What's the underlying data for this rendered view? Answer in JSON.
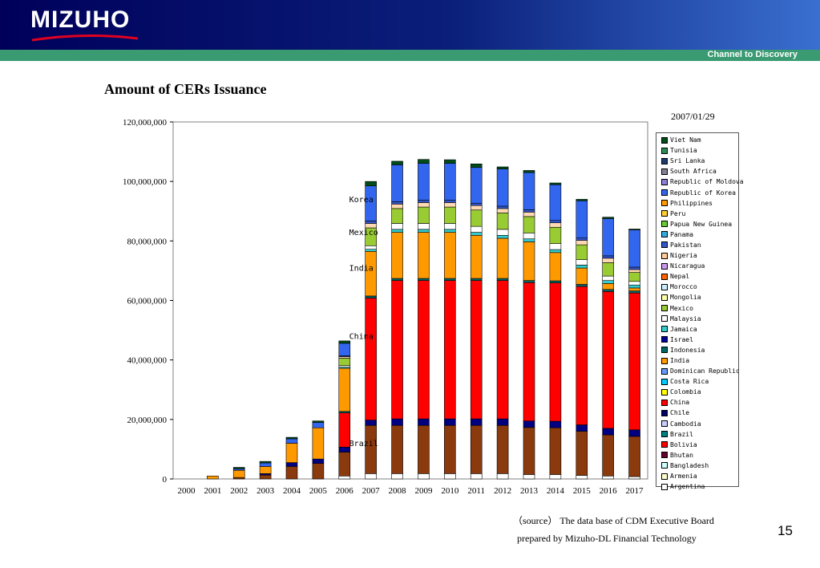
{
  "header": {
    "logo_text": "MIZUHO",
    "tagline": "Channel to Discovery"
  },
  "page": {
    "title": "Amount of CERs Issuance",
    "date": "2007/01/29",
    "source_note": "（source）  The data base of CDM Executive Board",
    "prepared_note": "prepared by Mizuho-DL Financial Technology",
    "page_number": "15"
  },
  "chart_data": {
    "type": "bar",
    "stacked": true,
    "categories": [
      "2000",
      "2001",
      "2002",
      "2003",
      "2004",
      "2005",
      "2006",
      "2007",
      "2008",
      "2009",
      "2010",
      "2011",
      "2012",
      "2013",
      "2014",
      "2015",
      "2016",
      "2017"
    ],
    "ylim": [
      0,
      120000000
    ],
    "yticks": [
      0,
      20000000,
      40000000,
      60000000,
      80000000,
      100000000,
      120000000
    ],
    "ytick_labels": [
      "0",
      "20,000,000",
      "40,000,000",
      "60,000,000",
      "80,000,000",
      "100,000,000",
      "120,000,000"
    ],
    "legend_position": "right",
    "legend": [
      {
        "name": "Viet Nam",
        "color": "#004d1a"
      },
      {
        "name": "Tunisia",
        "color": "#2e8b57"
      },
      {
        "name": "Sri Lanka",
        "color": "#1f3a6e"
      },
      {
        "name": "South Africa",
        "color": "#808090"
      },
      {
        "name": "Republic of Moldova",
        "color": "#8c7fd6"
      },
      {
        "name": "Republic of Korea",
        "color": "#3366ee"
      },
      {
        "name": "Philippines",
        "color": "#ff9900"
      },
      {
        "name": "Peru",
        "color": "#ffcc33"
      },
      {
        "name": "Papua New Guinea",
        "color": "#66cc33"
      },
      {
        "name": "Panama",
        "color": "#33aadd"
      },
      {
        "name": "Pakistan",
        "color": "#3355cc"
      },
      {
        "name": "Nigeria",
        "color": "#ffcc99"
      },
      {
        "name": "Nicaragua",
        "color": "#cc99ee"
      },
      {
        "name": "Nepal",
        "color": "#ff6600"
      },
      {
        "name": "Morocco",
        "color": "#cceeff"
      },
      {
        "name": "Mongolia",
        "color": "#ffffaa"
      },
      {
        "name": "Mexico",
        "color": "#99cc33"
      },
      {
        "name": "Malaysia",
        "color": "#ffffff"
      },
      {
        "name": "Jamaica",
        "color": "#33cccc"
      },
      {
        "name": "Israel",
        "color": "#000099"
      },
      {
        "name": "Indonesia",
        "color": "#006666"
      },
      {
        "name": "India",
        "color": "#ff9900"
      },
      {
        "name": "Dominican Republic",
        "color": "#6699ff"
      },
      {
        "name": "Costa Rica",
        "color": "#00ccff"
      },
      {
        "name": "Colombia",
        "color": "#ffff00"
      },
      {
        "name": "China",
        "color": "#ff0000"
      },
      {
        "name": "Chile",
        "color": "#000066"
      },
      {
        "name": "Cambodia",
        "color": "#ccccff"
      },
      {
        "name": "Brazil",
        "color": "#008080"
      },
      {
        "name": "Bolivia",
        "color": "#ff0000"
      },
      {
        "name": "Bhutan",
        "color": "#660033"
      },
      {
        "name": "Bangladesh",
        "color": "#ccffff"
      },
      {
        "name": "Armenia",
        "color": "#ffffcc"
      },
      {
        "name": "Argentina",
        "color": "#ffffff"
      }
    ],
    "annotations": [
      {
        "text": "Korea",
        "year": "2007",
        "value": 93000000
      },
      {
        "text": "Mexico",
        "year": "2007",
        "value": 82000000
      },
      {
        "text": "India",
        "year": "2007",
        "value": 70000000
      },
      {
        "text": "China",
        "year": "2007",
        "value": 47000000
      },
      {
        "text": "Brazil",
        "year": "2007",
        "value": 11000000
      }
    ],
    "series": [
      {
        "name": "Argentina",
        "color": "#ffffff",
        "values": [
          0,
          0,
          0,
          0,
          0,
          0,
          1000000,
          1800000,
          1800000,
          1800000,
          1800000,
          1800000,
          1800000,
          1500000,
          1500000,
          1200000,
          1000000,
          800000
        ]
      },
      {
        "name": "Brazil",
        "color": "#8b3a0e",
        "values": [
          0,
          0,
          500000,
          1300000,
          4200000,
          5200000,
          8000000,
          16200000,
          16200000,
          16200000,
          16200000,
          16200000,
          16200000,
          15800000,
          15700000,
          14800000,
          13800000,
          13500000
        ]
      },
      {
        "name": "Chile",
        "color": "#000080",
        "values": [
          0,
          0,
          0,
          500000,
          1300000,
          1500000,
          1700000,
          1800000,
          2200000,
          2200000,
          2200000,
          2200000,
          2200000,
          2200000,
          2200000,
          2200000,
          2200000,
          2200000
        ]
      },
      {
        "name": "China",
        "color": "#ff0000",
        "values": [
          0,
          0,
          0,
          0,
          0,
          0,
          11500000,
          41000000,
          46500000,
          46500000,
          46500000,
          46500000,
          46500000,
          46500000,
          46500000,
          46500000,
          46000000,
          46000000
        ]
      },
      {
        "name": "Indonesia",
        "color": "#006666",
        "values": [
          0,
          0,
          0,
          0,
          0,
          0,
          500000,
          700000,
          700000,
          700000,
          700000,
          700000,
          700000,
          700000,
          700000,
          700000,
          700000,
          700000
        ]
      },
      {
        "name": "India",
        "color": "#ff9900",
        "values": [
          0,
          1000000,
          2400000,
          2400000,
          6500000,
          10500000,
          14500000,
          15000000,
          15500000,
          15500000,
          15500000,
          14500000,
          13500000,
          13000000,
          9500000,
          5500000,
          2000000,
          1000000
        ]
      },
      {
        "name": "Jamaica",
        "color": "#33cccc",
        "values": [
          0,
          0,
          0,
          0,
          0,
          0,
          400000,
          700000,
          1000000,
          1000000,
          1000000,
          1000000,
          1000000,
          1000000,
          1000000,
          1000000,
          1000000,
          1000000
        ]
      },
      {
        "name": "Malaysia",
        "color": "#ffffff",
        "values": [
          0,
          0,
          0,
          0,
          0,
          0,
          500000,
          1200000,
          2000000,
          2000000,
          2000000,
          2000000,
          2000000,
          2000000,
          2000000,
          1800000,
          1500000,
          1200000
        ]
      },
      {
        "name": "Mexico",
        "color": "#99cc33",
        "values": [
          0,
          0,
          0,
          0,
          0,
          0,
          2500000,
          6000000,
          5000000,
          5500000,
          5500000,
          5500000,
          5500000,
          5500000,
          5500000,
          5000000,
          4500000,
          3000000
        ]
      },
      {
        "name": "Nicaragua",
        "color": "#ffd9b3",
        "values": [
          0,
          0,
          0,
          0,
          0,
          0,
          500000,
          1500000,
          1500000,
          1500000,
          1500000,
          1500000,
          1500000,
          1500000,
          1500000,
          1500000,
          1500000,
          1000000
        ]
      },
      {
        "name": "Pakistan",
        "color": "#3355cc",
        "values": [
          0,
          0,
          0,
          0,
          0,
          0,
          300000,
          800000,
          800000,
          800000,
          800000,
          800000,
          800000,
          800000,
          800000,
          800000,
          800000,
          800000
        ]
      },
      {
        "name": "Korea",
        "color": "#3366ee",
        "values": [
          0,
          0,
          500000,
          1200000,
          1500000,
          1800000,
          4200000,
          11800000,
          12400000,
          12400000,
          12400000,
          12000000,
          12500000,
          12500000,
          12000000,
          12500000,
          12500000,
          12500000
        ]
      },
      {
        "name": "Viet Nam",
        "color": "#004d1a",
        "values": [
          0,
          0,
          500000,
          500000,
          500000,
          500000,
          800000,
          1500000,
          1200000,
          1300000,
          1200000,
          1200000,
          700000,
          700000,
          600000,
          500000,
          500000,
          300000
        ]
      }
    ]
  }
}
